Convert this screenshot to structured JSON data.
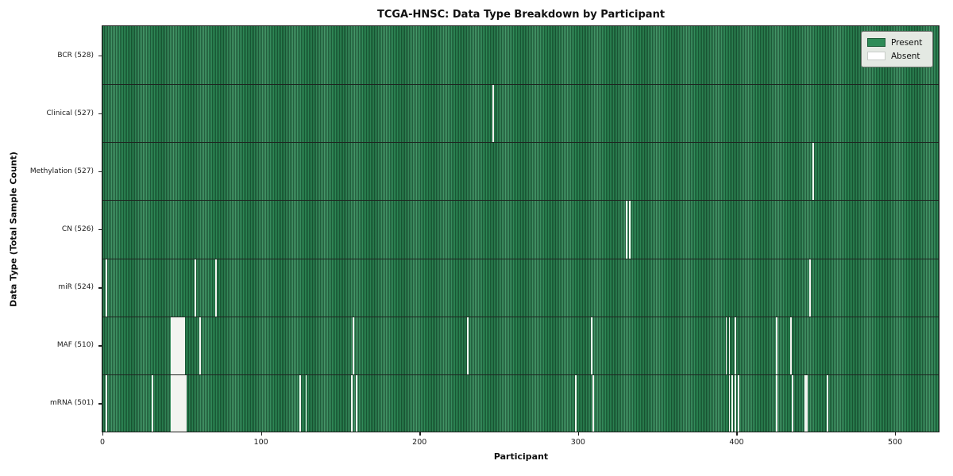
{
  "title": "TCGA-HNSC: Data Type Breakdown by Participant",
  "xlabel": "Participant",
  "ylabel": "Data Type (Total Sample Count)",
  "legend": {
    "present_label": "Present",
    "absent_label": "Absent"
  },
  "colors": {
    "present": "#2e8b57",
    "absent": "#f3f4f0",
    "grid_line": "#1e2420",
    "border": "#1c1c1c"
  },
  "chart_data": {
    "type": "heatmap",
    "title": "TCGA-HNSC: Data Type Breakdown by Participant",
    "xlabel": "Participant",
    "ylabel": "Data Type (Total Sample Count)",
    "x_range": [
      0,
      528
    ],
    "x_ticks": [
      0,
      100,
      200,
      300,
      400,
      500
    ],
    "n_participants": 528,
    "legend_position": "upper right",
    "legend_entries": [
      "Present",
      "Absent"
    ],
    "rows": [
      {
        "id": "bcr",
        "label": "BCR (528)",
        "present_count": 528,
        "absent": []
      },
      {
        "id": "clinical",
        "label": "Clinical (527)",
        "present_count": 527,
        "absent": [
          246
        ]
      },
      {
        "id": "methylation",
        "label": "Methylation (527)",
        "present_count": 527,
        "absent": [
          448
        ]
      },
      {
        "id": "cn",
        "label": "CN (526)",
        "present_count": 526,
        "absent": [
          330,
          332
        ]
      },
      {
        "id": "mir",
        "label": "miR (524)",
        "present_count": 524,
        "absent": [
          2,
          58,
          71,
          446
        ]
      },
      {
        "id": "maf",
        "label": "MAF (510)",
        "present_count": 510,
        "absent": [
          43,
          44,
          45,
          46,
          47,
          48,
          49,
          50,
          51,
          61,
          158,
          230,
          308,
          393,
          395,
          399,
          425,
          434
        ]
      },
      {
        "id": "mrna",
        "label": "mRNA (501)",
        "present_count": 501,
        "absent": [
          2,
          31,
          43,
          44,
          45,
          46,
          47,
          48,
          49,
          50,
          51,
          52,
          124,
          128,
          157,
          160,
          298,
          309,
          395,
          397,
          399,
          401,
          425,
          435,
          443,
          444,
          457
        ]
      }
    ]
  }
}
